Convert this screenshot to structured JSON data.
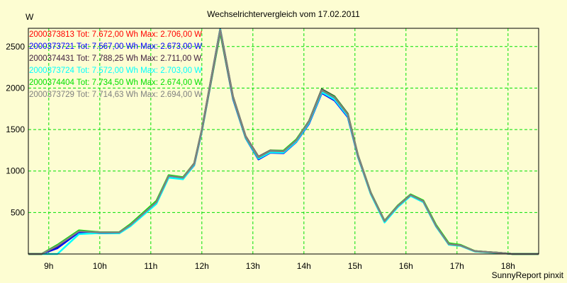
{
  "chart_data": {
    "type": "line",
    "title": "Wechselrichtervergleich vom 17.02.2011",
    "ylabel": "W",
    "xlabel": "",
    "footer": "SunnyReport pinxit",
    "xlim": [
      8.6,
      18.6
    ],
    "ylim": [
      0,
      2720
    ],
    "yticks": [
      500,
      1000,
      1500,
      2000,
      2500
    ],
    "ytick_labels": [
      "500",
      "1000",
      "1500",
      "2000",
      "2500"
    ],
    "xticks": [
      9,
      10,
      11,
      12,
      13,
      14,
      15,
      16,
      17,
      18
    ],
    "xtick_labels": [
      "9h",
      "10h",
      "11h",
      "12h",
      "13h",
      "14h",
      "15h",
      "16h",
      "17h",
      "18h"
    ],
    "grid": true,
    "grid_color": "#00e000",
    "legend_position": "top-left",
    "x": [
      8.6,
      8.86,
      9.17,
      9.59,
      10.0,
      10.38,
      10.6,
      11.11,
      11.35,
      11.63,
      11.85,
      12.0,
      12.36,
      12.61,
      12.86,
      13.11,
      13.34,
      13.6,
      13.85,
      14.1,
      14.35,
      14.6,
      14.86,
      15.06,
      15.31,
      15.58,
      15.84,
      16.09,
      16.34,
      16.59,
      16.84,
      17.07,
      17.35,
      17.6,
      17.84,
      18.1,
      18.6
    ],
    "series": [
      {
        "name": "2000373813",
        "legend": "2000373813 Tot: 7.672,00 Wh Max: 2.706,00 W",
        "color": "#ff0000",
        "values": [
          0,
          0,
          90,
          270,
          256,
          256,
          345,
          620,
          935,
          912,
          1080,
          1490,
          2706,
          1885,
          1405,
          1160,
          1236,
          1230,
          1362,
          1588,
          1960,
          1875,
          1672,
          1180,
          730,
          392,
          576,
          708,
          632,
          336,
          117,
          102,
          33,
          22,
          13,
          0,
          0
        ]
      },
      {
        "name": "2000373721",
        "legend": "2000373721 Tot: 7.567,00 Wh Max: 2.673,00 W",
        "color": "#0000ff",
        "values": [
          0,
          0,
          70,
          262,
          250,
          250,
          338,
          612,
          925,
          905,
          1070,
          1480,
          2673,
          1870,
          1395,
          1140,
          1220,
          1215,
          1350,
          1570,
          1940,
          1850,
          1650,
          1170,
          725,
          388,
          570,
          702,
          628,
          333,
          115,
          100,
          32,
          22,
          13,
          0,
          0
        ]
      },
      {
        "name": "2000374431",
        "legend": "2000374431 Tot: 7.788,25 Wh Max: 2.711,00 W",
        "color": "#402040",
        "values": [
          0,
          0,
          95,
          276,
          262,
          262,
          352,
          630,
          945,
          922,
          1092,
          1500,
          2711,
          1900,
          1418,
          1172,
          1248,
          1242,
          1376,
          1602,
          1985,
          1900,
          1690,
          1190,
          740,
          398,
          582,
          716,
          640,
          342,
          120,
          105,
          35,
          24,
          14,
          0,
          0
        ]
      },
      {
        "name": "2000373724",
        "legend": "2000373724 Tot: 7.572,00 Wh Max: 2.703,00 W",
        "color": "#00ffff",
        "values": [
          0,
          0,
          0,
          240,
          252,
          250,
          335,
          605,
          920,
          900,
          1075,
          1485,
          2703,
          1880,
          1400,
          1150,
          1225,
          1222,
          1355,
          1580,
          1950,
          1862,
          1662,
          1175,
          722,
          380,
          565,
          700,
          625,
          330,
          112,
          98,
          30,
          20,
          12,
          0,
          0
        ]
      },
      {
        "name": "2000374404",
        "legend": "2000374404 Tot: 7.734,50 Wh Max: 2.674,00 W",
        "color": "#00e000",
        "values": [
          0,
          0,
          110,
          285,
          262,
          262,
          360,
          640,
          950,
          925,
          1088,
          1495,
          2674,
          1890,
          1410,
          1165,
          1245,
          1245,
          1380,
          1598,
          1975,
          1895,
          1685,
          1185,
          738,
          400,
          585,
          718,
          645,
          350,
          130,
          110,
          35,
          24,
          14,
          0,
          0
        ]
      },
      {
        "name": "2000373729",
        "legend": "2000373729 Tot: 7.714,63 Wh Max: 2.694,00 W",
        "color": "#808080",
        "values": [
          0,
          0,
          100,
          274,
          260,
          260,
          350,
          627,
          941,
          918,
          1087,
          1497,
          2694,
          1892,
          1413,
          1167,
          1243,
          1237,
          1370,
          1596,
          1972,
          1887,
          1681,
          1186,
          735,
          396,
          579,
          712,
          636,
          339,
          119,
          104,
          34,
          23,
          14,
          0,
          0
        ]
      }
    ]
  }
}
